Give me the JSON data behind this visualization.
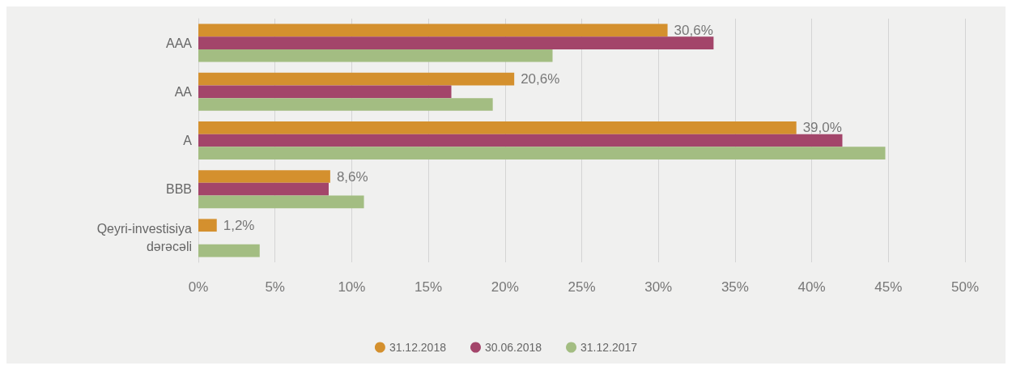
{
  "chart_data": {
    "type": "bar",
    "orientation": "horizontal",
    "categories": [
      "AAA",
      "AA",
      "A",
      "BBB",
      "Qeyri-investisiya\ndərəcəli"
    ],
    "series": [
      {
        "name": "31.12.2018",
        "color": "#d4902e",
        "values": [
          30.6,
          20.6,
          39.0,
          8.6,
          1.2
        ],
        "value_labels": [
          "30,6%",
          "20,6%",
          "39,0%",
          "8,6%",
          "1,2%"
        ]
      },
      {
        "name": "30.06.2018",
        "color": "#a3456a",
        "values": [
          33.6,
          16.5,
          42.0,
          8.5,
          null
        ]
      },
      {
        "name": "31.12.2017",
        "color": "#a3bd82",
        "values": [
          23.1,
          19.2,
          44.8,
          10.8,
          4.0
        ]
      }
    ],
    "xlim": [
      0,
      50
    ],
    "xticks": [
      {
        "value": 0,
        "label": "0%"
      },
      {
        "value": 5,
        "label": "5%"
      },
      {
        "value": 10,
        "label": "10%"
      },
      {
        "value": 15,
        "label": "15%"
      },
      {
        "value": 20,
        "label": "20%"
      },
      {
        "value": 25,
        "label": "25%"
      },
      {
        "value": 30,
        "label": "30%"
      },
      {
        "value": 35,
        "label": "35%"
      },
      {
        "value": 40,
        "label": "40%"
      },
      {
        "value": 45,
        "label": "45%"
      },
      {
        "value": 50,
        "label": "50%"
      }
    ],
    "grid": "x",
    "legend": "bottom"
  }
}
